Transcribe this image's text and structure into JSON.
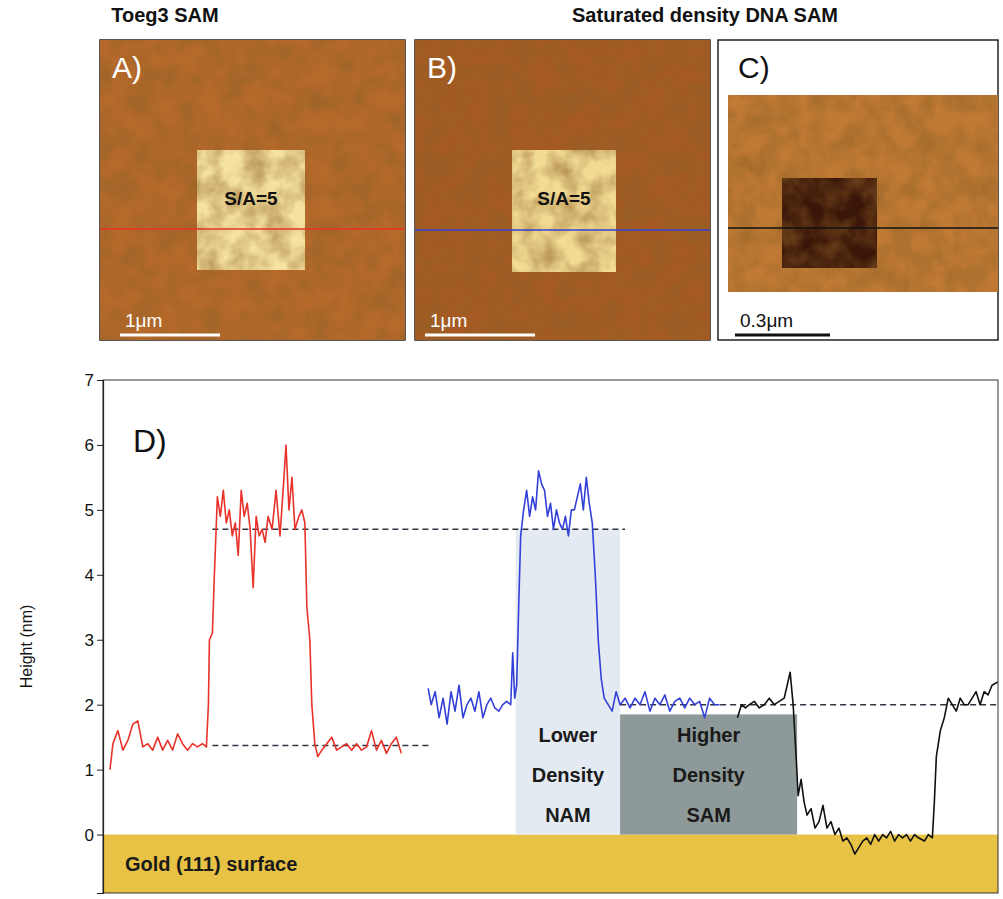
{
  "header": {
    "left": "Toeg3 SAM",
    "right": "Saturated density DNA SAM"
  },
  "images": [
    {
      "letter": "A)",
      "label": "S/A=5",
      "scale": "1μm"
    },
    {
      "letter": "B)",
      "label": "S/A=5",
      "scale": "1μm"
    },
    {
      "letter": "C)",
      "scale": "0.3μm"
    }
  ],
  "chart_data": {
    "type": "line",
    "title": "D)",
    "y_label": "Height (nm)",
    "xlim": [
      0,
      900
    ],
    "ylim": [
      -0.9,
      7
    ],
    "yticks": [
      0,
      1,
      2,
      3,
      4,
      5,
      6,
      7
    ],
    "tick_labels": "y",
    "grid": false,
    "surface": {
      "label": "Gold (111) surface",
      "y": 0,
      "color": "#e8c244"
    },
    "regions": [
      {
        "label": "Lower Density NAM",
        "x": [
          415,
          520
        ],
        "y": [
          0,
          4.7
        ],
        "color": "#e4eaf2"
      },
      {
        "label": "Higher Density SAM",
        "x": [
          520,
          698
        ],
        "y": [
          0,
          1.85
        ],
        "color": "#8e9999"
      }
    ],
    "reference_lines": [
      {
        "y": 4.7,
        "x": [
          110,
          525
        ],
        "line_style": "dashed",
        "color": "#333344"
      },
      {
        "y": 1.37,
        "x": [
          110,
          330
        ],
        "line_style": "dashed",
        "color": "#333344"
      },
      {
        "y": 2.0,
        "x": [
          520,
          900
        ],
        "line_style": "dashed",
        "color": "#333344"
      }
    ],
    "series": [
      {
        "color": "#e8322a",
        "x": [
          7,
          10,
          15,
          20,
          25,
          30,
          35,
          40,
          45,
          50,
          55,
          60,
          65,
          70,
          75,
          80,
          85,
          90,
          95,
          100,
          104,
          106,
          107,
          110,
          112,
          115,
          118,
          121,
          124,
          127,
          130,
          133,
          136,
          139,
          142,
          145,
          148,
          151,
          154,
          157,
          160,
          163,
          166,
          170,
          174,
          178,
          182,
          184,
          187,
          190,
          193,
          197,
          200,
          203,
          205,
          208,
          210,
          213,
          216,
          220,
          225,
          230,
          235,
          240,
          245,
          250,
          255,
          260,
          265,
          270,
          275,
          280,
          285,
          290,
          295,
          300
        ],
        "values": [
          1.0,
          1.4,
          1.6,
          1.3,
          1.45,
          1.7,
          1.75,
          1.35,
          1.4,
          1.3,
          1.5,
          1.3,
          1.45,
          1.3,
          1.55,
          1.4,
          1.3,
          1.4,
          1.35,
          1.4,
          1.35,
          2.0,
          3.0,
          3.1,
          4.0,
          5.2,
          4.9,
          5.3,
          4.8,
          5.0,
          4.6,
          4.8,
          4.3,
          5.3,
          4.9,
          5.1,
          4.7,
          3.8,
          4.9,
          4.6,
          4.7,
          4.5,
          4.9,
          4.7,
          5.3,
          4.6,
          5.5,
          6.0,
          5.0,
          5.5,
          4.7,
          4.9,
          5.0,
          4.8,
          3.5,
          3.0,
          2.0,
          1.4,
          1.2,
          1.3,
          1.4,
          1.5,
          1.3,
          1.35,
          1.4,
          1.3,
          1.4,
          1.3,
          1.35,
          1.6,
          1.3,
          1.45,
          1.25,
          1.4,
          1.5,
          1.25
        ]
      },
      {
        "color": "#3340d8",
        "x": [
          327,
          330,
          334,
          338,
          342,
          346,
          350,
          354,
          358,
          362,
          366,
          370,
          374,
          378,
          382,
          386,
          390,
          394,
          398,
          402,
          406,
          410,
          412,
          414,
          416,
          418,
          420,
          423,
          426,
          429,
          432,
          435,
          438,
          441,
          444,
          447,
          450,
          453,
          456,
          459,
          462,
          465,
          468,
          471,
          474,
          477,
          480,
          483,
          486,
          489,
          492,
          495,
          498,
          501,
          504,
          508,
          512,
          516,
          520,
          525,
          530,
          535,
          540,
          545,
          550,
          555,
          560,
          565,
          570,
          575,
          580,
          585,
          590,
          595,
          600,
          605,
          610,
          615,
          620
        ],
        "values": [
          2.25,
          2.0,
          2.2,
          1.8,
          2.1,
          1.7,
          2.2,
          1.9,
          2.3,
          1.8,
          2.0,
          2.1,
          1.9,
          2.2,
          1.8,
          2.0,
          2.1,
          1.95,
          1.9,
          2.0,
          2.05,
          2.0,
          2.8,
          2.1,
          2.3,
          3.5,
          4.6,
          5.0,
          5.3,
          4.9,
          5.2,
          5.0,
          5.6,
          5.4,
          5.3,
          4.9,
          5.1,
          4.7,
          5.0,
          4.8,
          4.7,
          4.9,
          4.6,
          5.0,
          5.0,
          5.2,
          5.4,
          5.0,
          5.5,
          5.1,
          4.8,
          4.0,
          3.0,
          2.4,
          2.1,
          2.0,
          1.9,
          2.2,
          2.0,
          2.1,
          1.95,
          2.1,
          2.0,
          2.2,
          1.9,
          2.1,
          2.0,
          2.15,
          1.9,
          2.05,
          2.1,
          1.95,
          2.1,
          2.0,
          2.05,
          1.8,
          2.1,
          2.0,
          2.0
        ]
      },
      {
        "color": "#111111",
        "x": [
          638,
          642,
          646,
          650,
          655,
          660,
          665,
          670,
          675,
          680,
          685,
          688,
          691,
          694,
          697,
          699,
          702,
          705,
          708,
          712,
          716,
          720,
          724,
          728,
          732,
          736,
          740,
          744,
          748,
          752,
          756,
          760,
          764,
          768,
          772,
          776,
          780,
          784,
          788,
          792,
          796,
          800,
          804,
          808,
          812,
          816,
          820,
          826,
          830,
          834,
          836,
          838,
          842,
          846,
          850,
          854,
          858,
          862,
          866,
          870,
          874,
          878,
          882,
          886,
          890,
          894,
          900
        ],
        "values": [
          1.8,
          2.0,
          1.95,
          2.0,
          2.05,
          1.95,
          2.0,
          2.1,
          2.0,
          2.05,
          2.1,
          2.3,
          2.5,
          2.0,
          1.2,
          0.6,
          0.85,
          0.5,
          0.3,
          0.4,
          0.1,
          0.2,
          0.45,
          0.1,
          0.2,
          0.0,
          0.1,
          -0.1,
          -0.05,
          -0.15,
          -0.3,
          -0.2,
          -0.1,
          -0.05,
          -0.15,
          0.0,
          -0.1,
          0.0,
          -0.05,
          0.05,
          -0.1,
          0.0,
          -0.05,
          0.0,
          -0.1,
          0.0,
          -0.05,
          -0.1,
          0.0,
          -0.05,
          0.5,
          1.2,
          1.6,
          1.8,
          2.1,
          2.0,
          1.9,
          2.1,
          2.0,
          2.0,
          2.1,
          2.2,
          2.0,
          2.2,
          2.15,
          2.3,
          2.35
        ]
      }
    ]
  }
}
